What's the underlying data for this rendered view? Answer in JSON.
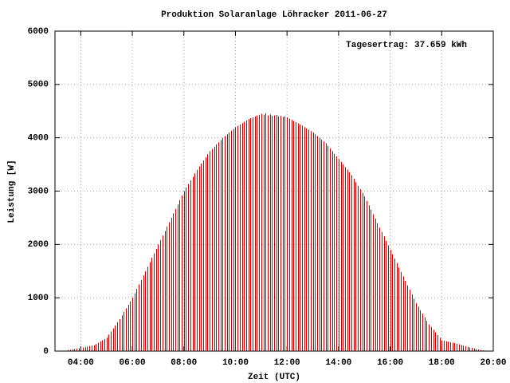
{
  "chart_data": {
    "type": "impulse",
    "title": "Produktion Solaranlage Löhracker 2011-06-27",
    "annotation": "Tagesertrag: 37.659 kWh",
    "x_label": "Zeit (UTC)",
    "y_label": "Leistung [W]",
    "color": "#cc0000",
    "grid": true,
    "xlim": [
      180,
      1200
    ],
    "ylim": [
      0,
      6000
    ],
    "xticks": [
      {
        "value": 240,
        "label": "04:00"
      },
      {
        "value": 360,
        "label": "06:00"
      },
      {
        "value": 480,
        "label": "08:00"
      },
      {
        "value": 600,
        "label": "10:00"
      },
      {
        "value": 720,
        "label": "12:00"
      },
      {
        "value": 840,
        "label": "14:00"
      },
      {
        "value": 960,
        "label": "16:00"
      },
      {
        "value": 1080,
        "label": "18:00"
      },
      {
        "value": 1200,
        "label": "20:00"
      }
    ],
    "yticks": [
      0,
      1000,
      2000,
      3000,
      4000,
      5000,
      6000
    ],
    "x": [
      210,
      215,
      220,
      225,
      230,
      235,
      240,
      245,
      250,
      255,
      260,
      265,
      270,
      275,
      280,
      285,
      290,
      295,
      300,
      305,
      310,
      315,
      320,
      325,
      330,
      335,
      340,
      345,
      350,
      355,
      360,
      365,
      370,
      375,
      380,
      385,
      390,
      395,
      400,
      405,
      410,
      415,
      420,
      425,
      430,
      435,
      440,
      445,
      450,
      455,
      460,
      465,
      470,
      475,
      480,
      485,
      490,
      495,
      500,
      505,
      510,
      515,
      520,
      525,
      530,
      535,
      540,
      545,
      550,
      555,
      560,
      565,
      570,
      575,
      580,
      585,
      590,
      595,
      600,
      605,
      610,
      615,
      620,
      625,
      630,
      635,
      640,
      645,
      650,
      655,
      660,
      665,
      670,
      675,
      680,
      685,
      690,
      695,
      700,
      705,
      710,
      715,
      720,
      725,
      730,
      735,
      740,
      745,
      750,
      755,
      760,
      765,
      770,
      775,
      780,
      785,
      790,
      795,
      800,
      805,
      810,
      815,
      820,
      825,
      830,
      835,
      840,
      845,
      850,
      855,
      860,
      865,
      870,
      875,
      880,
      885,
      890,
      895,
      900,
      905,
      910,
      915,
      920,
      925,
      930,
      935,
      940,
      945,
      950,
      955,
      960,
      965,
      970,
      975,
      980,
      985,
      990,
      995,
      1000,
      1005,
      1010,
      1015,
      1020,
      1025,
      1030,
      1035,
      1040,
      1045,
      1050,
      1055,
      1060,
      1065,
      1070,
      1075,
      1080,
      1085,
      1090,
      1095,
      1100,
      1105,
      1110,
      1115,
      1120,
      1125,
      1130,
      1135,
      1140,
      1145,
      1150,
      1155,
      1160,
      1165,
      1170,
      1175,
      1180,
      1185
    ],
    "values": [
      20,
      27,
      33,
      40,
      47,
      53,
      60,
      68,
      77,
      85,
      93,
      102,
      110,
      133,
      157,
      180,
      203,
      227,
      250,
      308,
      367,
      425,
      483,
      542,
      600,
      667,
      733,
      800,
      867,
      933,
      1000,
      1083,
      1167,
      1250,
      1333,
      1417,
      1500,
      1583,
      1667,
      1750,
      1833,
      1917,
      2000,
      2083,
      2167,
      2250,
      2333,
      2417,
      2500,
      2583,
      2667,
      2750,
      2833,
      2917,
      3000,
      3067,
      3133,
      3200,
      3267,
      3333,
      3400,
      3458,
      3517,
      3575,
      3633,
      3692,
      3750,
      3792,
      3833,
      3875,
      3917,
      3958,
      4000,
      4033,
      4067,
      4100,
      4133,
      4167,
      4200,
      4225,
      4250,
      4275,
      4300,
      4325,
      4350,
      4367,
      4383,
      4400,
      4417,
      4433,
      4450,
      4430,
      4460,
      4420,
      4440,
      4410,
      4420,
      4430,
      4400,
      4410,
      4390,
      4400,
      4380,
      4358,
      4337,
      4315,
      4293,
      4272,
      4250,
      4225,
      4200,
      4175,
      4150,
      4125,
      4100,
      4067,
      4033,
      4000,
      3967,
      3933,
      3900,
      3850,
      3800,
      3750,
      3700,
      3650,
      3600,
      3550,
      3500,
      3450,
      3400,
      3350,
      3300,
      3233,
      3167,
      3100,
      3033,
      2967,
      2900,
      2817,
      2733,
      2650,
      2567,
      2483,
      2400,
      2317,
      2233,
      2150,
      2067,
      1983,
      1900,
      1817,
      1733,
      1650,
      1567,
      1483,
      1400,
      1317,
      1233,
      1150,
      1067,
      983,
      900,
      833,
      767,
      700,
      633,
      567,
      500,
      450,
      400,
      350,
      300,
      250,
      200,
      192,
      183,
      175,
      167,
      158,
      150,
      138,
      127,
      115,
      103,
      92,
      80,
      70,
      60,
      50,
      40,
      30,
      20,
      15,
      10,
      5
    ]
  }
}
